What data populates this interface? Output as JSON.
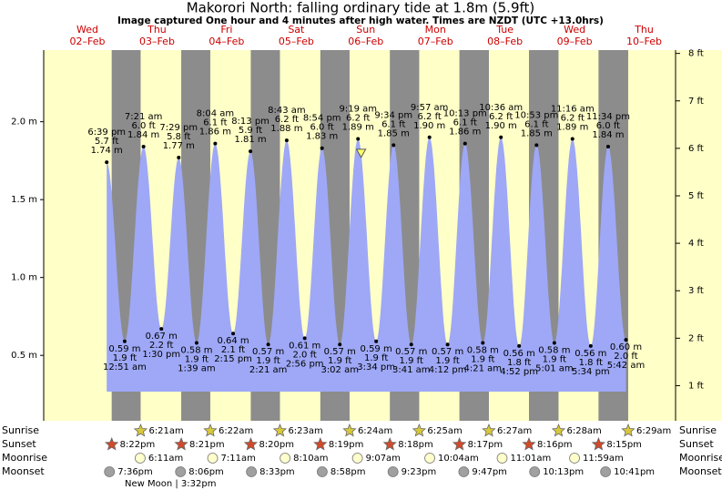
{
  "chart_data": {
    "type": "tide",
    "title": "Makorori North: falling  ordinary tide at 1.8m (5.9ft)",
    "subtitle": "Image captured One hour and 4 minutes after high water. Times are NZDT (UTC +13.0hrs)",
    "days": [
      {
        "weekday": "Wed",
        "date": "02–Feb"
      },
      {
        "weekday": "Thu",
        "date": "03–Feb"
      },
      {
        "weekday": "Fri",
        "date": "04–Feb"
      },
      {
        "weekday": "Sat",
        "date": "05–Feb"
      },
      {
        "weekday": "Sun",
        "date": "06–Feb"
      },
      {
        "weekday": "Mon",
        "date": "07–Feb"
      },
      {
        "weekday": "Tue",
        "date": "08–Feb"
      },
      {
        "weekday": "Wed",
        "date": "09–Feb"
      },
      {
        "weekday": "Thu",
        "date": "10–Feb"
      }
    ],
    "ylim": [
      0.08,
      2.46
    ],
    "yticks": [
      {
        "value": 0.5,
        "label": "0.5 m"
      },
      {
        "value": 1.0,
        "label": "1.0 m"
      },
      {
        "value": 1.5,
        "label": "1.5 m"
      },
      {
        "value": 2.0,
        "label": "2.0 m"
      }
    ],
    "y2lim": [
      0.26,
      8.07
    ],
    "y2ticks": [
      {
        "value": 1,
        "label": "1 ft"
      },
      {
        "value": 2,
        "label": "2 ft"
      },
      {
        "value": 3,
        "label": "3 ft"
      },
      {
        "value": 4,
        "label": "4 ft"
      },
      {
        "value": 5,
        "label": "5 ft"
      },
      {
        "value": 6,
        "label": "6 ft"
      },
      {
        "value": 7,
        "label": "7 ft"
      },
      {
        "value": 8,
        "label": "8 ft"
      }
    ],
    "tides": {
      "color": "#9ea8f6",
      "times": [
        "6:39 pm",
        "12:51 am",
        "7:21 am",
        "1:30 pm",
        "7:29 pm",
        "1:39 am",
        "8:04 am",
        "2:15 pm",
        "8:13 pm",
        "2:21 am",
        "8:43 am",
        "2:56 pm",
        "8:54 pm",
        "3:02 am",
        "9:19 am",
        "3:34 pm",
        "9:34 pm",
        "3:41 am",
        "9:57 am",
        "4:12 pm",
        "10:13 pm",
        "4:21 am",
        "10:36 am",
        "4:52 pm",
        "10:53 pm",
        "5:01 am",
        "11:16 am",
        "5:34 pm",
        "11:34 pm",
        "5:42 am"
      ],
      "values": [
        1.74,
        0.59,
        1.84,
        0.67,
        1.77,
        0.58,
        1.86,
        0.64,
        1.81,
        0.57,
        1.88,
        0.61,
        1.83,
        0.57,
        1.89,
        0.59,
        1.85,
        0.57,
        1.9,
        0.57,
        1.86,
        0.58,
        1.9,
        0.56,
        1.85,
        0.58,
        1.89,
        0.56,
        1.84,
        0.6
      ],
      "value_labels": [
        "1.74 m",
        "0.59 m",
        "1.84 m",
        "0.67 m",
        "1.77 m",
        "0.58 m",
        "1.86 m",
        "0.64 m",
        "1.81 m",
        "0.57 m",
        "1.88 m",
        "0.61 m",
        "1.83 m",
        "0.57 m",
        "1.89 m",
        "0.59 m",
        "1.85 m",
        "0.57 m",
        "1.90 m",
        "0.57 m",
        "1.86 m",
        "0.58 m",
        "1.90 m",
        "0.56 m",
        "1.85 m",
        "0.58 m",
        "1.89 m",
        "0.56 m",
        "1.84 m",
        "0.60 m"
      ],
      "value_labels_ft": [
        "5.7 ft",
        "1.9 ft",
        "6.0 ft",
        "2.2 ft",
        "5.8 ft",
        "1.9 ft",
        "6.1 ft",
        "2.1 ft",
        "5.9 ft",
        "1.9 ft",
        "6.2 ft",
        "2.0 ft",
        "6.0 ft",
        "1.9 ft",
        "6.2 ft",
        "1.9 ft",
        "6.1 ft",
        "1.9 ft",
        "6.2 ft",
        "1.9 ft",
        "6.1 ft",
        "1.9 ft",
        "6.2 ft",
        "1.8 ft",
        "6.1 ft",
        "1.9 ft",
        "6.2 ft",
        "1.8 ft",
        "6.0 ft",
        "2.0 ft"
      ]
    },
    "current": {
      "value": 1.8
    },
    "rows": [
      {
        "name": "Sunrise",
        "color": "#d8c83a",
        "times": [
          "6:21am",
          "6:22am",
          "6:23am",
          "6:24am",
          "6:25am",
          "6:27am",
          "6:28am",
          "6:29am"
        ]
      },
      {
        "name": "Sunset",
        "color": "#d04a2a",
        "times": [
          "8:22pm",
          "8:21pm",
          "8:20pm",
          "8:19pm",
          "8:18pm",
          "8:17pm",
          "8:16pm",
          "8:15pm"
        ]
      },
      {
        "name": "Moonrise",
        "color": "#ffffcc",
        "times": [
          "6:11am",
          "7:11am",
          "8:10am",
          "9:07am",
          "10:04am",
          "11:01am",
          "11:59am"
        ]
      },
      {
        "name": "Moonset",
        "color": "#a0a0a0",
        "times": [
          "7:36pm",
          "8:06pm",
          "8:33pm",
          "8:58pm",
          "9:23pm",
          "9:47pm",
          "10:13pm",
          "10:41pm"
        ]
      }
    ],
    "moon_phase": "New Moon | 3:32pm"
  }
}
